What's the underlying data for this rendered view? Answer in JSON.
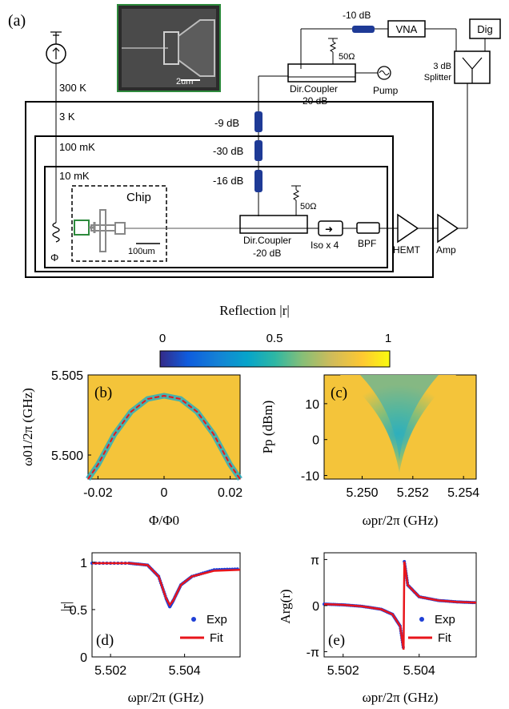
{
  "panels": {
    "a": "(a)",
    "b": "(b)",
    "c": "(c)",
    "d": "(d)",
    "e": "(e)"
  },
  "schematic": {
    "temperatures": [
      "300 K",
      "3 K",
      "100 mK",
      "10 mK"
    ],
    "attenuators": [
      "-9 dB",
      "-30 dB",
      "-16 dB"
    ],
    "top_attenuator": "-10 dB",
    "vna": "VNA",
    "dig": "Dig",
    "splitter_label_1": "3 dB",
    "splitter_label_2": "Splitter",
    "coupler_top": [
      "Dir.Coupler",
      "-20 dB"
    ],
    "coupler_bottom": [
      "Dir.Coupler",
      "-20 dB"
    ],
    "termination": "50Ω",
    "pump": "Pump",
    "chip": "Chip",
    "chip_scale": "100um",
    "sem_scale": "2um",
    "iso": "Iso x 4",
    "bpf": "BPF",
    "hemt": "HEMT",
    "amp": "Amp",
    "flux": "Φ"
  },
  "colorbar": {
    "title": "Reflection |r|",
    "ticks": [
      "0",
      "0.5",
      "1"
    ],
    "colors": [
      "#352a87",
      "#0f5cdd",
      "#1481d6",
      "#06a4ca",
      "#2eb7a4",
      "#87bf77",
      "#d1bb59",
      "#fec832",
      "#f9fb0e"
    ]
  },
  "chart_data": [
    {
      "panel": "b",
      "type": "heatmap",
      "xlabel": "Φ/Φ0",
      "ylabel": "ω01/2π (GHz)",
      "x_ticks": [
        "-0.02",
        "0",
        "0.02"
      ],
      "y_ticks": [
        "5.505",
        "5.500"
      ],
      "xlim": [
        -0.023,
        0.023
      ],
      "ylim": [
        5.4985,
        5.505
      ],
      "fit_curve": {
        "x": [
          -0.023,
          -0.02,
          -0.015,
          -0.01,
          -0.005,
          0,
          0.005,
          0.01,
          0.015,
          0.02,
          0.023
        ],
        "y": [
          5.4985,
          5.4994,
          5.5013,
          5.5027,
          5.5035,
          5.5037,
          5.5035,
          5.5027,
          5.5013,
          5.4994,
          5.4985
        ]
      }
    },
    {
      "panel": "c",
      "type": "heatmap",
      "xlabel": "ωpr/2π (GHz)",
      "ylabel": "Pp (dBm)",
      "x_ticks": [
        "5.250",
        "5.252",
        "5.254"
      ],
      "y_ticks": [
        "10",
        "0",
        "-10"
      ],
      "xlim": [
        5.2485,
        5.2545
      ],
      "ylim": [
        -11,
        18
      ]
    },
    {
      "panel": "d",
      "type": "scatter",
      "xlabel": "ωpr/2π (GHz)",
      "ylabel": "|r|",
      "x_ticks": [
        "5.502",
        "5.504"
      ],
      "y_ticks": [
        "1",
        "0.5",
        "0"
      ],
      "xlim": [
        5.5015,
        5.5055
      ],
      "ylim": [
        0,
        1.1
      ],
      "series": [
        {
          "name": "Exp",
          "color": "#1f3fd6",
          "x": [
            5.5015,
            5.5025,
            5.503,
            5.5033,
            5.5035,
            5.5036,
            5.5037,
            5.5039,
            5.5042,
            5.5048,
            5.5055
          ],
          "values": [
            0.99,
            0.99,
            0.97,
            0.85,
            0.62,
            0.53,
            0.6,
            0.76,
            0.85,
            0.92,
            0.93
          ]
        },
        {
          "name": "Fit",
          "color": "#e8151b",
          "x": [
            5.5015,
            5.5025,
            5.503,
            5.5033,
            5.5035,
            5.5036,
            5.5037,
            5.5039,
            5.5042,
            5.5048,
            5.5055
          ],
          "values": [
            0.99,
            0.99,
            0.97,
            0.85,
            0.62,
            0.55,
            0.6,
            0.76,
            0.85,
            0.91,
            0.92
          ]
        }
      ]
    },
    {
      "panel": "e",
      "type": "scatter",
      "xlabel": "ωpr/2π (GHz)",
      "ylabel": "Arg(r)",
      "x_ticks": [
        "5.502",
        "5.504"
      ],
      "y_ticks": [
        "π",
        "0",
        "-π"
      ],
      "xlim": [
        5.5015,
        5.5055
      ],
      "ylim": [
        -3.5,
        3.6
      ],
      "series": [
        {
          "name": "Exp",
          "color": "#1f3fd6",
          "x": [
            5.5015,
            5.502,
            5.5025,
            5.503,
            5.5033,
            5.5035,
            5.50359,
            5.50361,
            5.5037,
            5.504,
            5.5045,
            5.505,
            5.5055
          ],
          "values": [
            0.1,
            0.05,
            -0.05,
            -0.25,
            -0.6,
            -1.4,
            -3.0,
            3.0,
            1.4,
            0.6,
            0.35,
            0.25,
            0.2
          ]
        },
        {
          "name": "Fit",
          "color": "#e8151b",
          "x": [
            5.5015,
            5.502,
            5.5025,
            5.503,
            5.5033,
            5.5035,
            5.50359,
            5.50361,
            5.5037,
            5.504,
            5.5045,
            5.505,
            5.5055
          ],
          "values": [
            0.1,
            0.05,
            -0.05,
            -0.25,
            -0.6,
            -1.4,
            -3.0,
            3.0,
            1.4,
            0.6,
            0.35,
            0.25,
            0.2
          ]
        }
      ]
    }
  ]
}
